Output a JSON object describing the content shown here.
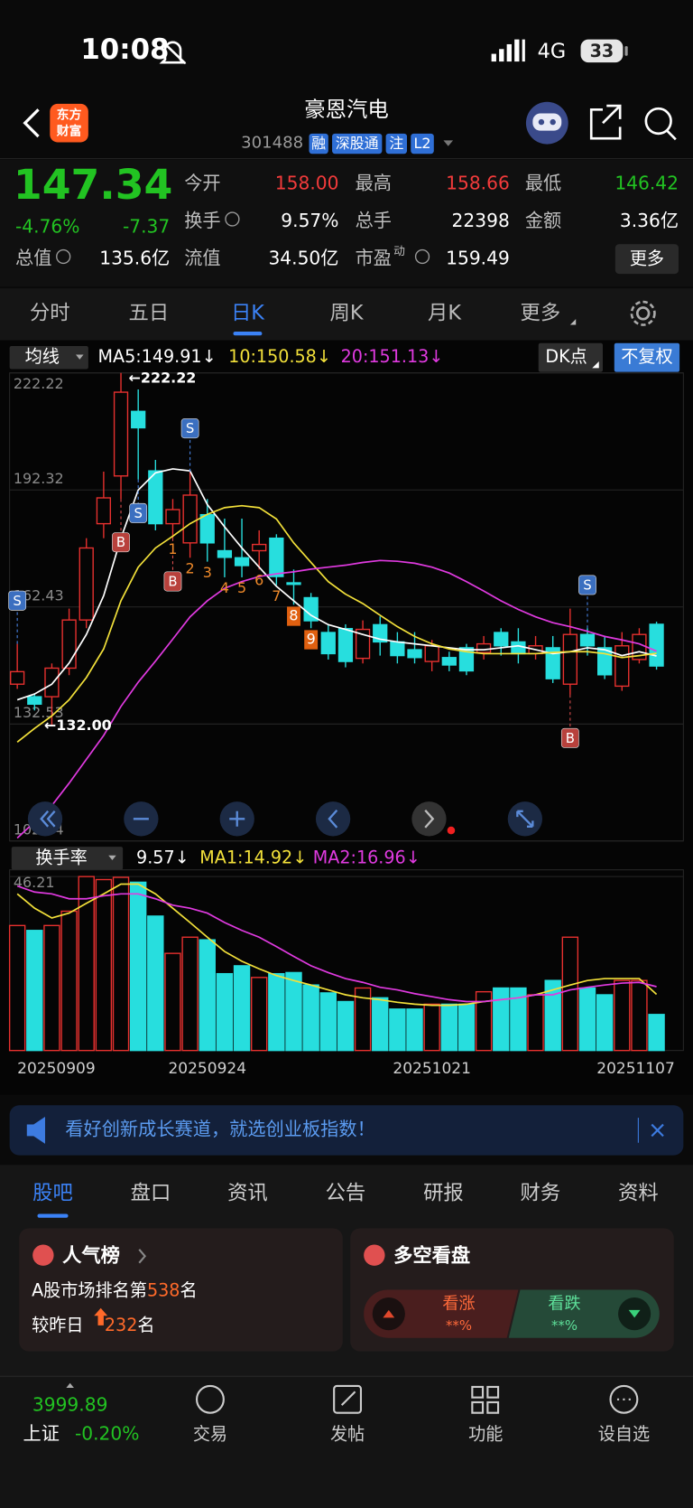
{
  "status_bar": {
    "time": "10:08",
    "network": "4G",
    "battery": "33"
  },
  "header": {
    "logo": [
      "东方",
      "财富"
    ],
    "name": "豪恩汽电",
    "code": "301488",
    "badges": [
      "融",
      "深股通",
      "注",
      "L2"
    ]
  },
  "quote": {
    "price": "147.34",
    "change_percent": "-4.76%",
    "change": "-7.37",
    "fields": [
      {
        "label": "今开",
        "value": "158.00",
        "color": "#f23b3b"
      },
      {
        "label": "最高",
        "value": "158.66",
        "color": "#f23b3b"
      },
      {
        "label": "最低",
        "value": "146.42",
        "color": "#22c322"
      },
      {
        "label": "换手",
        "value": "9.57%",
        "color": "#ffffff"
      },
      {
        "label": "总手",
        "value": "22398",
        "color": "#ffffff"
      },
      {
        "label": "金额",
        "value": "3.36亿",
        "color": "#ffffff"
      },
      {
        "label": "总值",
        "value": "135.6亿",
        "color": "#ffffff"
      },
      {
        "label": "流值",
        "value": "34.50亿",
        "color": "#ffffff"
      },
      {
        "label": "市盈",
        "superscript": "动",
        "value": "159.49",
        "color": "#ffffff"
      }
    ],
    "more": "更多"
  },
  "period_tabs": {
    "items": [
      "分时",
      "五日",
      "日K",
      "周K",
      "月K",
      "更多"
    ],
    "active": 2
  },
  "chart_data": [
    {
      "type": "candlestick",
      "legend_button": "均线",
      "buttons": [
        "DK点",
        "不复权"
      ],
      "up_color": "#e8312f",
      "down_color": "#27dede",
      "open": [
        142.7,
        139.5,
        139.5,
        146.8,
        159.1,
        183.7,
        195.9,
        212.4,
        197.2,
        183.7,
        178.8,
        186.0,
        176.8,
        175.0,
        176.8,
        180.0,
        168.6,
        164.8,
        155.9,
        156.9,
        149.3,
        157.9,
        153.5,
        151.5,
        148.5,
        149.5,
        152.0,
        150.8,
        155.9,
        153.5,
        150.5,
        152.0,
        142.7,
        155.4,
        152.0,
        142.2,
        149.0,
        158.0
      ],
      "high": [
        153.0,
        140.2,
        148.0,
        162.0,
        180.0,
        197.0,
        222.22,
        218.0,
        200.0,
        190.0,
        197.0,
        190.0,
        185.0,
        185.0,
        182.0,
        181.0,
        172.0,
        166.0,
        158.0,
        158.0,
        159.0,
        160.0,
        156.0,
        156.0,
        154.0,
        151.0,
        153.0,
        155.0,
        157.0,
        157.0,
        155.0,
        155.0,
        162.0,
        157.0,
        155.0,
        156.0,
        157.0,
        158.66
      ],
      "low": [
        141.5,
        136.0,
        132.0,
        145.0,
        157.0,
        180.0,
        190.0,
        195.0,
        182.0,
        180.0,
        175.0,
        174.0,
        170.0,
        170.0,
        172.0,
        168.0,
        163.0,
        157.0,
        149.0,
        147.0,
        148.0,
        150.0,
        148.0,
        148.0,
        146.0,
        146.0,
        145.0,
        149.0,
        150.0,
        148.0,
        149.0,
        143.0,
        140.0,
        150.0,
        144.0,
        141.0,
        148.0,
        146.42
      ],
      "close": [
        145.9,
        137.6,
        146.8,
        159.1,
        177.5,
        190.3,
        217.3,
        208.2,
        183.7,
        187.3,
        191.0,
        178.8,
        175.1,
        173.0,
        178.4,
        170.2,
        168.2,
        158.9,
        150.5,
        148.5,
        156.7,
        153.5,
        150.0,
        149.5,
        152.5,
        147.6,
        146.1,
        153.0,
        152.5,
        150.5,
        152.5,
        144.1,
        155.4,
        152.5,
        145.1,
        152.5,
        155.4,
        147.34
      ],
      "ylim": [
        102.64,
        222.22
      ],
      "yticks": [
        222.22,
        192.32,
        162.43,
        132.53,
        102.64
      ],
      "grid": true,
      "series": [
        {
          "name": "MA5:149.91↓",
          "color": "#ffffff",
          "values": [
            138.7,
            140.2,
            142.7,
            148.1,
            155.4,
            165.3,
            180.0,
            192.3,
            196.7,
            197.7,
            197.2,
            188.6,
            182.9,
            177.5,
            172.6,
            167.7,
            164.0,
            160.3,
            157.9,
            156.7,
            155.4,
            154.2,
            153.5,
            153.0,
            152.5,
            152.0,
            151.5,
            151.5,
            152.0,
            152.5,
            151.5,
            150.5,
            151.0,
            152.0,
            151.5,
            150.0,
            151.0,
            149.91
          ]
        },
        {
          "name": "10:150.58↓",
          "color": "#f2e03a",
          "values": [
            127.9,
            131.4,
            134.6,
            138.7,
            144.4,
            151.7,
            164.0,
            172.6,
            177.5,
            180.5,
            183.7,
            186.1,
            187.8,
            188.3,
            187.8,
            184.9,
            178.8,
            173.8,
            168.9,
            165.7,
            163.3,
            160.3,
            157.4,
            154.9,
            153.0,
            151.7,
            151.0,
            150.5,
            150.5,
            150.5,
            150.5,
            150.8,
            151.0,
            151.0,
            150.5,
            149.5,
            150.0,
            150.58
          ]
        },
        {
          "name": "20:151.13↓",
          "color": "#e03ae0",
          "values": [
            103.4,
            107.5,
            111.7,
            117.4,
            123.5,
            129.6,
            137.0,
            143.2,
            148.6,
            154.2,
            159.9,
            164.0,
            167.2,
            168.9,
            170.2,
            170.9,
            171.4,
            172.1,
            172.6,
            173.1,
            173.8,
            174.3,
            174.1,
            173.6,
            172.6,
            171.1,
            168.9,
            166.5,
            164.0,
            161.8,
            159.9,
            158.4,
            157.4,
            156.2,
            154.9,
            154.0,
            153.0,
            151.13
          ]
        }
      ],
      "signals": [
        "S",
        null,
        null,
        null,
        null,
        null,
        "B",
        "S",
        null,
        "B",
        "S",
        null,
        null,
        null,
        null,
        null,
        null,
        null,
        null,
        null,
        null,
        null,
        null,
        null,
        null,
        null,
        null,
        null,
        null,
        null,
        null,
        null,
        "B",
        "S",
        null,
        null,
        null,
        null
      ],
      "signal_counts": [
        null,
        null,
        null,
        null,
        null,
        null,
        null,
        null,
        null,
        1,
        2,
        3,
        4,
        5,
        6,
        7,
        8,
        9,
        null,
        null,
        null,
        null,
        null,
        null,
        null,
        null,
        null,
        null,
        null,
        null,
        null,
        null,
        null,
        null,
        null,
        null,
        null,
        null
      ],
      "max_label": {
        "value": 222.22,
        "label": "←222.22"
      },
      "min_label": {
        "value": 132.0,
        "label": "←132.00"
      }
    },
    {
      "type": "bar",
      "legend_button": "换手率",
      "name": "9.57↓",
      "categories": [
        "20250909",
        null,
        null,
        null,
        null,
        null,
        null,
        null,
        null,
        null,
        null,
        "20250924",
        null,
        null,
        null,
        null,
        null,
        null,
        null,
        null,
        null,
        null,
        null,
        null,
        "20251021",
        null,
        null,
        null,
        null,
        null,
        null,
        null,
        null,
        null,
        null,
        null,
        null,
        "20251107"
      ],
      "values": [
        33.2,
        31.9,
        33.2,
        37.0,
        46.2,
        45.4,
        46.0,
        44.7,
        35.7,
        25.8,
        30.1,
        29.4,
        20.4,
        22.5,
        19.4,
        20.4,
        20.7,
        17.4,
        15.3,
        13.0,
        16.6,
        14.0,
        11.0,
        11.0,
        12.3,
        12.3,
        12.3,
        15.6,
        16.6,
        16.6,
        14.8,
        18.6,
        30.1,
        16.6,
        14.8,
        18.6,
        18.6,
        9.57
      ],
      "ylim": [
        0,
        46.21
      ],
      "yticks": [
        46.21
      ],
      "series": [
        {
          "name": "MA1:14.92↓",
          "color": "#f2e03a",
          "values": [
            41.6,
            37.8,
            35.2,
            36.5,
            39.1,
            41.6,
            44.2,
            44.2,
            41.6,
            37.8,
            34.0,
            30.1,
            26.3,
            23.7,
            21.7,
            19.9,
            18.6,
            17.4,
            16.1,
            14.8,
            14.0,
            13.5,
            12.8,
            12.3,
            12.0,
            12.0,
            12.3,
            13.0,
            13.5,
            14.0,
            14.8,
            16.1,
            17.4,
            18.6,
            19.1,
            19.1,
            19.1,
            14.92
          ]
        },
        {
          "name": "MA2:16.96↓",
          "color": "#e03ae0",
          "values": [
            43.7,
            42.1,
            41.6,
            40.3,
            40.3,
            41.1,
            41.6,
            41.6,
            40.3,
            38.6,
            37.8,
            36.5,
            34.0,
            31.9,
            30.1,
            27.6,
            25.0,
            22.5,
            20.7,
            19.1,
            18.1,
            16.8,
            16.1,
            15.1,
            14.3,
            13.5,
            13.0,
            13.0,
            13.5,
            14.0,
            14.8,
            14.8,
            16.1,
            16.8,
            17.4,
            17.9,
            18.1,
            16.96
          ]
        }
      ]
    }
  ],
  "banner": {
    "text": "看好创新成长赛道，就选创业板指数！"
  },
  "content_tabs": {
    "items": [
      "股吧",
      "盘口",
      "资讯",
      "公告",
      "研报",
      "财务",
      "资料"
    ],
    "active": 0
  },
  "popularity_card": {
    "title": "人气榜",
    "rank_prefix": "A股市场排名第",
    "rank": 538,
    "rank_suffix": "名",
    "change_prefix": "较昨日",
    "change": 232,
    "change_suffix": "名"
  },
  "sentiment_card": {
    "title": "多空看盘",
    "bull_label": "看涨",
    "bull_value": "**%",
    "bear_label": "看跌",
    "bear_value": "**%"
  },
  "bottom_nav": {
    "index_value": "3999.89",
    "index_name": "上证",
    "index_change": "-0.20%",
    "items": [
      "交易",
      "发帖",
      "功能",
      "设自选"
    ]
  }
}
